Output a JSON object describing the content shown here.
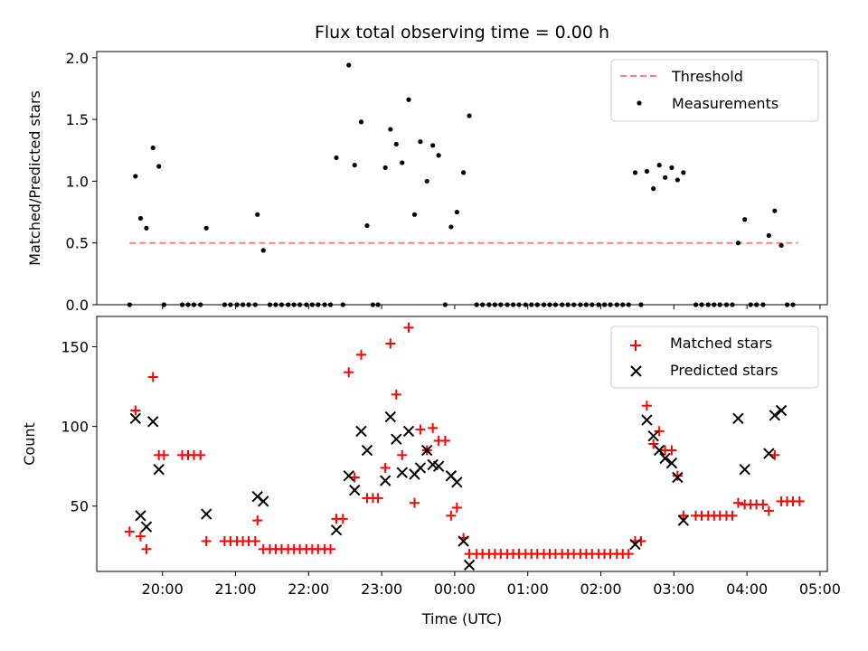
{
  "chart_data": [
    {
      "type": "scatter",
      "panel": "top",
      "title": "Flux total observing time = 0.00 h",
      "ylabel": "Matched/Predicted stars",
      "ylim": [
        0,
        2.05
      ],
      "yticks": [
        0.0,
        0.5,
        1.0,
        1.5,
        2.0
      ],
      "ytick_labels": [
        "0.0",
        "0.5",
        "1.0",
        "1.5",
        "2.0"
      ],
      "x_unit": "hours since 20:00 UTC (negative = before 20:00)",
      "threshold": {
        "name": "Threshold",
        "value": 0.5,
        "x_start": -0.45,
        "x_end": 8.7,
        "color": "#ff7f7f"
      },
      "series": [
        {
          "name": "Measurements",
          "color": "#000000",
          "marker": "dot",
          "points": [
            [
              -0.45,
              0
            ],
            [
              -0.37,
              1.04
            ],
            [
              -0.3,
              0.7
            ],
            [
              -0.22,
              0.62
            ],
            [
              -0.13,
              1.27
            ],
            [
              -0.05,
              1.12
            ],
            [
              0.02,
              0
            ],
            [
              0.27,
              0
            ],
            [
              0.35,
              0
            ],
            [
              0.43,
              0
            ],
            [
              0.52,
              0
            ],
            [
              0.6,
              0.62
            ],
            [
              0.85,
              0
            ],
            [
              0.93,
              0
            ],
            [
              1.02,
              0
            ],
            [
              1.1,
              0
            ],
            [
              1.18,
              0
            ],
            [
              1.27,
              0
            ],
            [
              1.3,
              0.73
            ],
            [
              1.38,
              0.44
            ],
            [
              1.47,
              0
            ],
            [
              1.55,
              0
            ],
            [
              1.63,
              0
            ],
            [
              1.72,
              0
            ],
            [
              1.8,
              0
            ],
            [
              1.88,
              0
            ],
            [
              1.97,
              0
            ],
            [
              2.05,
              0
            ],
            [
              2.13,
              0
            ],
            [
              2.22,
              0
            ],
            [
              2.3,
              0
            ],
            [
              2.38,
              1.19
            ],
            [
              2.47,
              0
            ],
            [
              2.55,
              1.94
            ],
            [
              2.63,
              1.13
            ],
            [
              2.72,
              1.48
            ],
            [
              2.8,
              0.64
            ],
            [
              2.88,
              0
            ],
            [
              2.95,
              0
            ],
            [
              3.05,
              1.11
            ],
            [
              3.12,
              1.42
            ],
            [
              3.2,
              1.3
            ],
            [
              3.28,
              1.15
            ],
            [
              3.37,
              1.66
            ],
            [
              3.45,
              0.73
            ],
            [
              3.53,
              1.32
            ],
            [
              3.62,
              1.0
            ],
            [
              3.7,
              1.29
            ],
            [
              3.78,
              1.21
            ],
            [
              3.87,
              0
            ],
            [
              3.95,
              0.63
            ],
            [
              4.03,
              0.75
            ],
            [
              4.12,
              1.07
            ],
            [
              4.2,
              1.53
            ],
            [
              4.3,
              0
            ],
            [
              4.38,
              0
            ],
            [
              4.47,
              0
            ],
            [
              4.55,
              0
            ],
            [
              4.63,
              0
            ],
            [
              4.72,
              0
            ],
            [
              4.8,
              0
            ],
            [
              4.88,
              0
            ],
            [
              4.97,
              0
            ],
            [
              5.05,
              0
            ],
            [
              5.13,
              0
            ],
            [
              5.22,
              0
            ],
            [
              5.3,
              0
            ],
            [
              5.38,
              0
            ],
            [
              5.47,
              0
            ],
            [
              5.55,
              0
            ],
            [
              5.63,
              0
            ],
            [
              5.72,
              0
            ],
            [
              5.8,
              0
            ],
            [
              5.88,
              0
            ],
            [
              5.97,
              0
            ],
            [
              6.05,
              0
            ],
            [
              6.13,
              0
            ],
            [
              6.22,
              0
            ],
            [
              6.3,
              0
            ],
            [
              6.38,
              0
            ],
            [
              6.47,
              1.07
            ],
            [
              6.55,
              0
            ],
            [
              6.63,
              1.08
            ],
            [
              6.72,
              0.94
            ],
            [
              6.8,
              1.13
            ],
            [
              6.88,
              1.03
            ],
            [
              6.97,
              1.11
            ],
            [
              7.05,
              1.01
            ],
            [
              7.13,
              1.07
            ],
            [
              7.3,
              0
            ],
            [
              7.38,
              0
            ],
            [
              7.47,
              0
            ],
            [
              7.55,
              0
            ],
            [
              7.63,
              0
            ],
            [
              7.72,
              0
            ],
            [
              7.8,
              0
            ],
            [
              7.88,
              0.5
            ],
            [
              7.97,
              0.69
            ],
            [
              8.05,
              0
            ],
            [
              8.13,
              0
            ],
            [
              8.22,
              0
            ],
            [
              8.3,
              0.56
            ],
            [
              8.38,
              0.76
            ],
            [
              8.47,
              0.48
            ],
            [
              8.55,
              0
            ],
            [
              8.63,
              0
            ]
          ]
        }
      ],
      "legend": {
        "position": "upper right",
        "entries": [
          "Threshold",
          "Measurements"
        ]
      },
      "grid": false
    },
    {
      "type": "scatter",
      "panel": "bottom",
      "xlabel": "Time (UTC)",
      "ylabel": "Count",
      "xlim": [
        -0.9,
        9.1
      ],
      "ylim": [
        9,
        169
      ],
      "xticks": [
        0,
        1,
        2,
        3,
        4,
        5,
        6,
        7,
        8,
        9
      ],
      "xtick_labels": [
        "20:00",
        "21:00",
        "22:00",
        "23:00",
        "00:00",
        "01:00",
        "02:00",
        "03:00",
        "04:00",
        "05:00"
      ],
      "yticks": [
        50,
        100,
        150
      ],
      "ytick_labels": [
        "50",
        "100",
        "150"
      ],
      "series": [
        {
          "name": "Matched stars",
          "color": "#ff0000",
          "marker": "plus",
          "points": [
            [
              -0.45,
              34
            ],
            [
              -0.37,
              110
            ],
            [
              -0.3,
              31
            ],
            [
              -0.22,
              23
            ],
            [
              -0.13,
              131
            ],
            [
              -0.05,
              82
            ],
            [
              0.02,
              82
            ],
            [
              0.27,
              82
            ],
            [
              0.35,
              82
            ],
            [
              0.43,
              82
            ],
            [
              0.52,
              82
            ],
            [
              0.6,
              28
            ],
            [
              0.85,
              28
            ],
            [
              0.93,
              28
            ],
            [
              1.02,
              28
            ],
            [
              1.1,
              28
            ],
            [
              1.18,
              28
            ],
            [
              1.27,
              28
            ],
            [
              1.3,
              41
            ],
            [
              1.38,
              23
            ],
            [
              1.47,
              23
            ],
            [
              1.55,
              23
            ],
            [
              1.63,
              23
            ],
            [
              1.72,
              23
            ],
            [
              1.8,
              23
            ],
            [
              1.88,
              23
            ],
            [
              1.97,
              23
            ],
            [
              2.05,
              23
            ],
            [
              2.13,
              23
            ],
            [
              2.22,
              23
            ],
            [
              2.3,
              23
            ],
            [
              2.38,
              42
            ],
            [
              2.47,
              42
            ],
            [
              2.55,
              134
            ],
            [
              2.63,
              68
            ],
            [
              2.72,
              145
            ],
            [
              2.8,
              55
            ],
            [
              2.88,
              55
            ],
            [
              2.95,
              55
            ],
            [
              3.05,
              74
            ],
            [
              3.12,
              152
            ],
            [
              3.2,
              120
            ],
            [
              3.28,
              82
            ],
            [
              3.37,
              162
            ],
            [
              3.45,
              52
            ],
            [
              3.53,
              98
            ],
            [
              3.62,
              85
            ],
            [
              3.7,
              99
            ],
            [
              3.78,
              91
            ],
            [
              3.87,
              91
            ],
            [
              3.95,
              44
            ],
            [
              4.03,
              49
            ],
            [
              4.12,
              30
            ],
            [
              4.2,
              20
            ],
            [
              4.3,
              20
            ],
            [
              4.38,
              20
            ],
            [
              4.47,
              20
            ],
            [
              4.55,
              20
            ],
            [
              4.63,
              20
            ],
            [
              4.72,
              20
            ],
            [
              4.8,
              20
            ],
            [
              4.88,
              20
            ],
            [
              4.97,
              20
            ],
            [
              5.05,
              20
            ],
            [
              5.13,
              20
            ],
            [
              5.22,
              20
            ],
            [
              5.3,
              20
            ],
            [
              5.38,
              20
            ],
            [
              5.47,
              20
            ],
            [
              5.55,
              20
            ],
            [
              5.63,
              20
            ],
            [
              5.72,
              20
            ],
            [
              5.8,
              20
            ],
            [
              5.88,
              20
            ],
            [
              5.97,
              20
            ],
            [
              6.05,
              20
            ],
            [
              6.13,
              20
            ],
            [
              6.22,
              20
            ],
            [
              6.3,
              20
            ],
            [
              6.38,
              20
            ],
            [
              6.47,
              28
            ],
            [
              6.55,
              28
            ],
            [
              6.63,
              113
            ],
            [
              6.72,
              89
            ],
            [
              6.8,
              97
            ],
            [
              6.88,
              85
            ],
            [
              6.97,
              85
            ],
            [
              7.05,
              69
            ],
            [
              7.13,
              44
            ],
            [
              7.3,
              44
            ],
            [
              7.38,
              44
            ],
            [
              7.47,
              44
            ],
            [
              7.55,
              44
            ],
            [
              7.63,
              44
            ],
            [
              7.72,
              44
            ],
            [
              7.8,
              44
            ],
            [
              7.88,
              52
            ],
            [
              7.97,
              51
            ],
            [
              8.05,
              51
            ],
            [
              8.13,
              51
            ],
            [
              8.22,
              51
            ],
            [
              8.3,
              47
            ],
            [
              8.38,
              82
            ],
            [
              8.47,
              53
            ],
            [
              8.55,
              53
            ],
            [
              8.63,
              53
            ],
            [
              8.72,
              53
            ]
          ]
        },
        {
          "name": "Predicted stars",
          "color": "#000000",
          "marker": "x",
          "points": [
            [
              -0.37,
              105
            ],
            [
              -0.3,
              44
            ],
            [
              -0.22,
              37
            ],
            [
              -0.13,
              103
            ],
            [
              -0.05,
              73
            ],
            [
              0.6,
              45
            ],
            [
              1.3,
              56
            ],
            [
              1.38,
              53
            ],
            [
              2.38,
              35
            ],
            [
              2.55,
              69
            ],
            [
              2.63,
              60
            ],
            [
              2.72,
              97
            ],
            [
              2.8,
              85
            ],
            [
              3.05,
              66
            ],
            [
              3.12,
              106
            ],
            [
              3.2,
              92
            ],
            [
              3.28,
              71
            ],
            [
              3.37,
              97
            ],
            [
              3.45,
              70
            ],
            [
              3.53,
              74
            ],
            [
              3.62,
              85
            ],
            [
              3.7,
              76
            ],
            [
              3.78,
              75
            ],
            [
              3.95,
              69
            ],
            [
              4.03,
              65
            ],
            [
              4.12,
              28
            ],
            [
              4.2,
              13
            ],
            [
              6.47,
              26
            ],
            [
              6.63,
              104
            ],
            [
              6.72,
              94
            ],
            [
              6.8,
              85
            ],
            [
              6.88,
              80
            ],
            [
              6.97,
              77
            ],
            [
              7.05,
              68
            ],
            [
              7.13,
              41
            ],
            [
              7.88,
              105
            ],
            [
              7.97,
              73
            ],
            [
              8.3,
              83
            ],
            [
              8.38,
              107
            ],
            [
              8.47,
              110
            ]
          ]
        }
      ],
      "legend": {
        "position": "upper right",
        "entries": [
          "Matched stars",
          "Predicted stars"
        ]
      },
      "grid": false
    }
  ]
}
